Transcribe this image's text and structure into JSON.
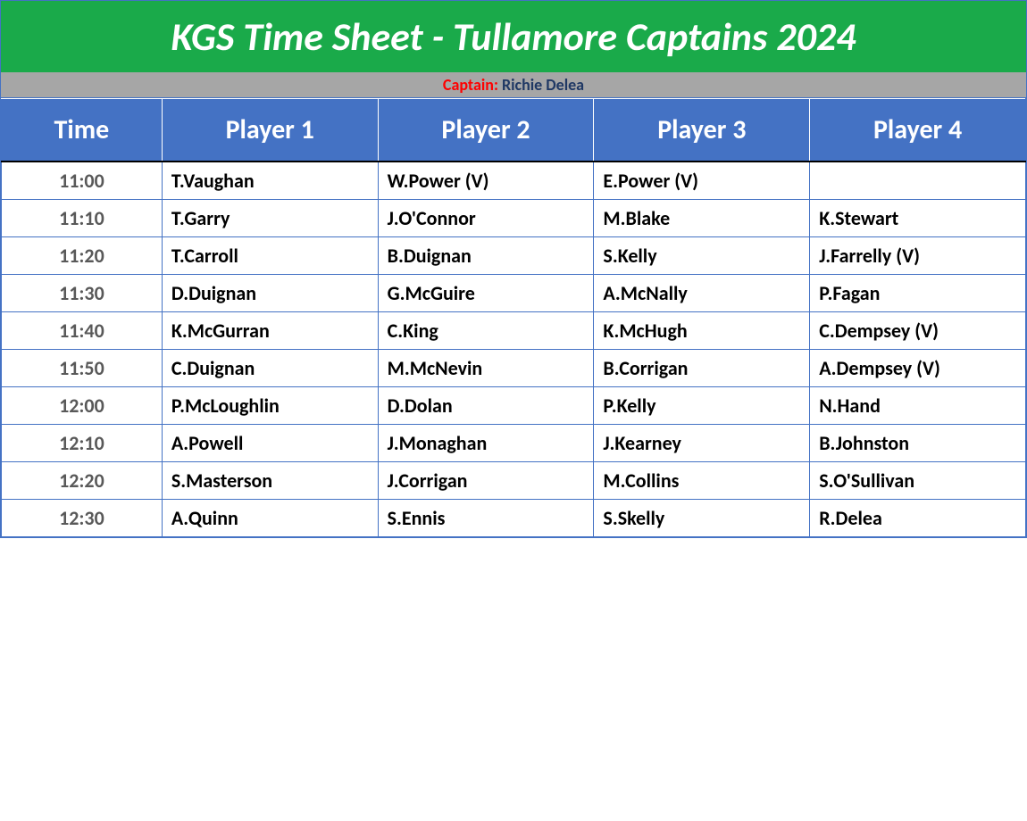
{
  "title": "KGS Time Sheet - Tullamore Captains 2024",
  "captain": {
    "label": "Captain:",
    "name": " Richie Delea"
  },
  "columns": [
    "Time",
    "Player 1",
    "Player 2",
    "Player 3",
    "Player 4"
  ],
  "rows": [
    {
      "time": "11:00",
      "p1": "T.Vaughan",
      "p2": "W.Power (V)",
      "p3": "E.Power (V)",
      "p4": ""
    },
    {
      "time": "11:10",
      "p1": "T.Garry",
      "p2": "J.O'Connor",
      "p3": "M.Blake",
      "p4": "K.Stewart"
    },
    {
      "time": "11:20",
      "p1": "T.Carroll",
      "p2": "B.Duignan",
      "p3": "S.Kelly",
      "p4": "J.Farrelly (V)"
    },
    {
      "time": "11:30",
      "p1": "D.Duignan",
      "p2": "G.McGuire",
      "p3": "A.McNally",
      "p4": "P.Fagan"
    },
    {
      "time": "11:40",
      "p1": "K.McGurran",
      "p2": "C.King",
      "p3": "K.McHugh",
      "p4": "C.Dempsey (V)"
    },
    {
      "time": "11:50",
      "p1": "C.Duignan",
      "p2": "M.McNevin",
      "p3": "B.Corrigan",
      "p4": "A.Dempsey (V)"
    },
    {
      "time": "12:00",
      "p1": "P.McLoughlin",
      "p2": "D.Dolan",
      "p3": "P.Kelly",
      "p4": "N.Hand"
    },
    {
      "time": "12:10",
      "p1": "A.Powell",
      "p2": "J.Monaghan",
      "p3": "J.Kearney",
      "p4": "B.Johnston"
    },
    {
      "time": "12:20",
      "p1": "S.Masterson",
      "p2": "J.Corrigan",
      "p3": "M.Collins",
      "p4": "S.O'Sullivan"
    },
    {
      "time": "12:30",
      "p1": "A.Quinn",
      "p2": "S.Ennis",
      "p3": "S.Skelly",
      "p4": "R.Delea"
    }
  ],
  "styles": {
    "title_bg": "#1aaa4a",
    "title_color": "#ffffff",
    "captain_bg": "#a6a6a6",
    "captain_label_color": "#ff0000",
    "captain_name_color": "#1f3864",
    "header_bg": "#4472c4",
    "header_color": "#ffffff",
    "border_color": "#4472c4",
    "time_text_color": "#595959",
    "player_text_color": "#000000",
    "row_bg": "#ffffff",
    "title_fontsize": 44,
    "header_fontsize": 30,
    "cell_fontsize": 22,
    "captain_fontsize": 18
  }
}
